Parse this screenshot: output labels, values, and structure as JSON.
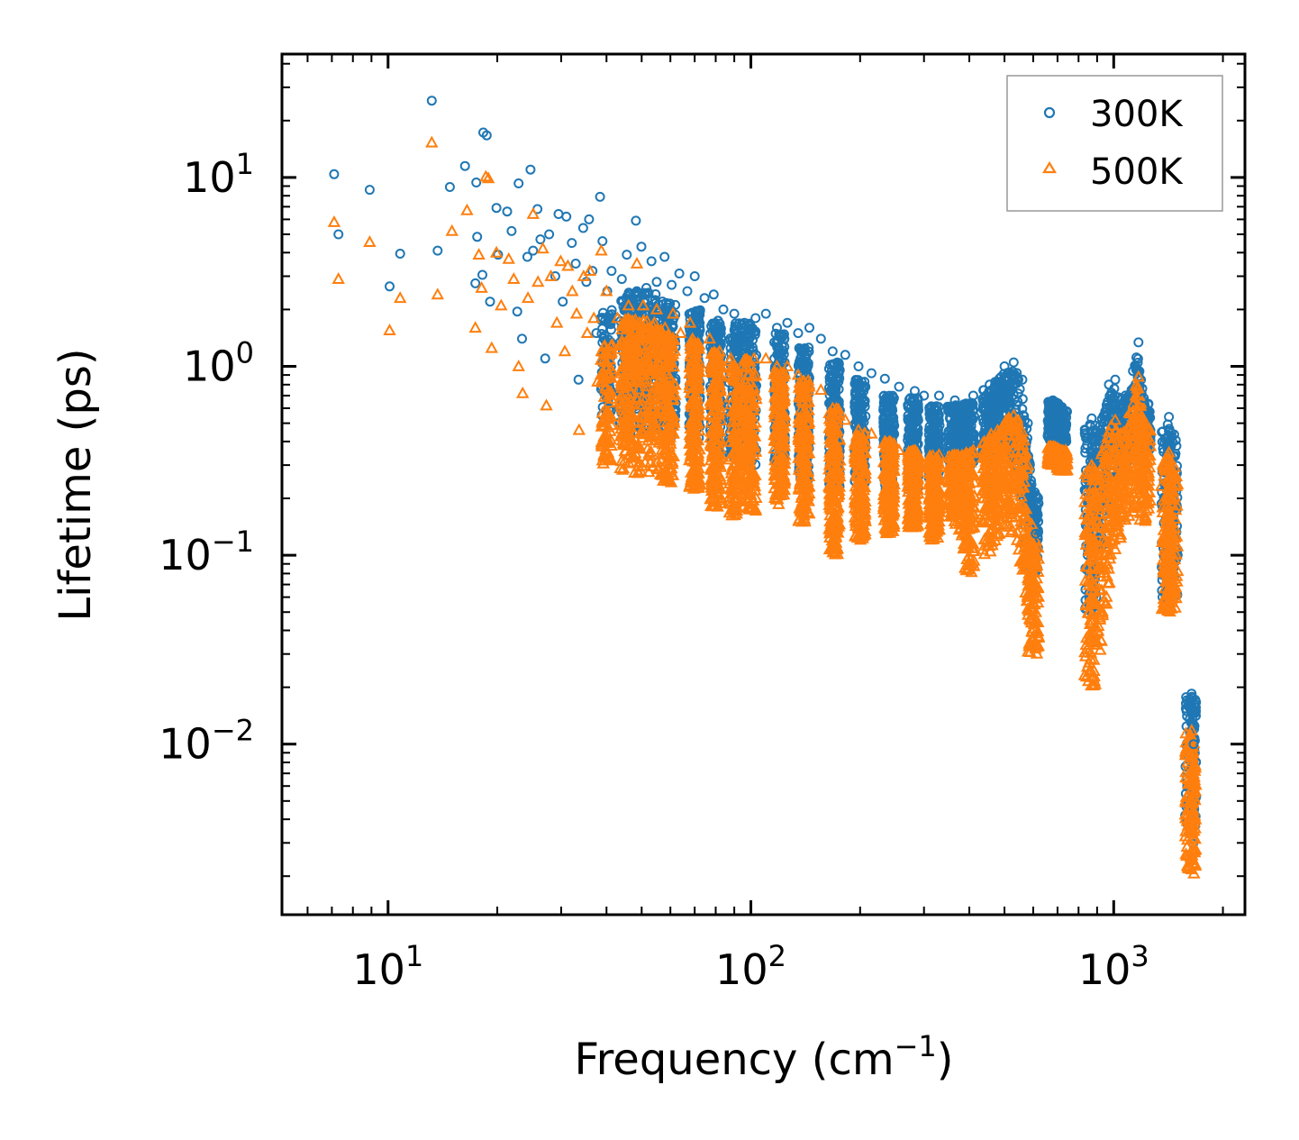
{
  "chart_data": {
    "type": "scatter",
    "xscale": "log",
    "yscale": "log",
    "xlim": [
      5.1,
      2300
    ],
    "ylim": [
      0.00125,
      45
    ],
    "xlabel": "Frequency (cm",
    "xlabel_sup": "−1",
    "xlabel_end": ")",
    "ylabel": "Lifetime (ps)",
    "x_ticks": [
      {
        "value": 10,
        "base": "10",
        "exp": "1"
      },
      {
        "value": 100,
        "base": "10",
        "exp": "2"
      },
      {
        "value": 1000,
        "base": "10",
        "exp": "3"
      }
    ],
    "y_ticks": [
      {
        "value": 10,
        "base": "10",
        "exp": "1"
      },
      {
        "value": 1,
        "base": "10",
        "exp": "0"
      },
      {
        "value": 0.1,
        "base": "10",
        "exp": "−1"
      },
      {
        "value": 0.01,
        "base": "10",
        "exp": "−2"
      }
    ],
    "legend_position": "top-right",
    "series": [
      {
        "name": "300K",
        "marker": "circle",
        "color": "#1f77b4",
        "points": [
          [
            7.1,
            10.4
          ],
          [
            7.3,
            5.0
          ],
          [
            8.9,
            8.6
          ],
          [
            10.1,
            2.65
          ],
          [
            10.8,
            3.95
          ],
          [
            13.2,
            25.5
          ],
          [
            13.7,
            4.1
          ],
          [
            14.8,
            8.9
          ],
          [
            16.3,
            11.5
          ],
          [
            17.4,
            2.75
          ],
          [
            17.5,
            9.4
          ],
          [
            17.6,
            4.85
          ],
          [
            18.2,
            3.05
          ],
          [
            18.3,
            17.3
          ],
          [
            18.7,
            16.7
          ],
          [
            19.1,
            2.2
          ],
          [
            19.9,
            6.9
          ],
          [
            20.1,
            3.9
          ],
          [
            21.3,
            6.6
          ],
          [
            21.9,
            5.2
          ],
          [
            22.7,
            1.95
          ],
          [
            22.9,
            9.3
          ],
          [
            23.4,
            1.4
          ],
          [
            24.2,
            3.8
          ],
          [
            24.7,
            11.0
          ],
          [
            25.1,
            4.1
          ],
          [
            25.8,
            6.8
          ],
          [
            26.3,
            4.7
          ],
          [
            27.1,
            1.1
          ],
          [
            27.8,
            5.0
          ],
          [
            28.9,
            3.0
          ],
          [
            29.5,
            6.4
          ],
          [
            30.3,
            2.2
          ],
          [
            31.0,
            6.2
          ],
          [
            32.1,
            4.5
          ],
          [
            32.9,
            3.5
          ],
          [
            33.5,
            0.85
          ],
          [
            34.5,
            5.4
          ],
          [
            35.2,
            2.8
          ],
          [
            35.8,
            6.0
          ],
          [
            36.6,
            3.2
          ],
          [
            37.5,
            1.5
          ],
          [
            38.4,
            7.9
          ],
          [
            39.0,
            4.6
          ],
          [
            40.2,
            2.5
          ],
          [
            41.3,
            3.2
          ],
          [
            42.6,
            1.8
          ],
          [
            44.1,
            2.9
          ],
          [
            45.5,
            3.9
          ],
          [
            47.0,
            2.3
          ],
          [
            48.2,
            5.9
          ],
          [
            49.9,
            4.3
          ],
          [
            51.5,
            2.6
          ],
          [
            53.2,
            3.6
          ],
          [
            55.0,
            2.8
          ],
          [
            57.8,
            3.8
          ],
          [
            60.5,
            2.7
          ],
          [
            63.5,
            3.1
          ],
          [
            66.8,
            2.5
          ],
          [
            70.0,
            3.0
          ],
          [
            74.5,
            2.3
          ],
          [
            79.0,
            2.4
          ],
          [
            84.0,
            2.0
          ],
          [
            90.0,
            1.9
          ],
          [
            96.0,
            1.7
          ],
          [
            103.0,
            1.8
          ],
          [
            110.0,
            1.9
          ],
          [
            118.0,
            1.6
          ],
          [
            126.0,
            1.7
          ],
          [
            135.0,
            1.5
          ],
          [
            145.0,
            1.6
          ],
          [
            156.0,
            1.4
          ],
          [
            168.0,
            1.2
          ],
          [
            182.0,
            1.15
          ],
          [
            198.0,
            1.0
          ],
          [
            215.0,
            0.92
          ],
          [
            234.0,
            0.86
          ],
          [
            256.0,
            0.78
          ],
          [
            283.0,
            0.74
          ],
          [
            300.0,
            0.7
          ],
          [
            330.0,
            0.7
          ],
          [
            365.0,
            0.66
          ],
          [
            410.0,
            0.7
          ],
          [
            455.0,
            0.8
          ],
          [
            500.0,
            1.0
          ],
          [
            530.0,
            1.05
          ],
          [
            560.0,
            0.85
          ],
          [
            580.0,
            0.5
          ],
          [
            610.0,
            0.13
          ],
          [
            680.0,
            0.66
          ],
          [
            700.0,
            0.6
          ],
          [
            715.0,
            0.55
          ],
          [
            870.0,
            0.53
          ],
          [
            900.0,
            0.45
          ],
          [
            970.0,
            0.8
          ],
          [
            1010.0,
            0.85
          ],
          [
            1060.0,
            0.6
          ],
          [
            1150.0,
            1.0
          ],
          [
            1170.0,
            1.34
          ],
          [
            1210.0,
            0.68
          ],
          [
            1420.0,
            0.54
          ],
          [
            1440.0,
            0.42
          ],
          [
            1640.0,
            0.0185
          ],
          [
            1650.0,
            0.0135
          ],
          [
            1660.0,
            0.01
          ]
        ]
      },
      {
        "name": "500K",
        "marker": "triangle",
        "color": "#ff7f0e",
        "points": [
          [
            7.1,
            5.8
          ],
          [
            7.3,
            2.9
          ],
          [
            8.9,
            4.55
          ],
          [
            10.1,
            1.55
          ],
          [
            10.8,
            2.3
          ],
          [
            13.2,
            15.3
          ],
          [
            13.7,
            2.4
          ],
          [
            15.0,
            5.2
          ],
          [
            16.5,
            6.7
          ],
          [
            17.4,
            1.6
          ],
          [
            17.8,
            3.9
          ],
          [
            18.1,
            2.6
          ],
          [
            18.6,
            10.1
          ],
          [
            18.9,
            9.9
          ],
          [
            19.3,
            1.25
          ],
          [
            19.9,
            4.0
          ],
          [
            20.5,
            2.1
          ],
          [
            21.5,
            3.7
          ],
          [
            22.2,
            2.9
          ],
          [
            22.9,
            1.0
          ],
          [
            23.5,
            0.72
          ],
          [
            24.3,
            2.3
          ],
          [
            25.1,
            6.4
          ],
          [
            25.9,
            2.8
          ],
          [
            26.7,
            4.2
          ],
          [
            27.3,
            0.62
          ],
          [
            28.1,
            3.0
          ],
          [
            29.2,
            1.7
          ],
          [
            29.9,
            3.6
          ],
          [
            30.7,
            1.2
          ],
          [
            31.3,
            3.4
          ],
          [
            32.2,
            2.5
          ],
          [
            33.1,
            1.9
          ],
          [
            33.6,
            0.46
          ],
          [
            34.6,
            3.0
          ],
          [
            35.4,
            1.5
          ],
          [
            36.0,
            3.2
          ],
          [
            36.9,
            1.8
          ],
          [
            37.8,
            0.83
          ],
          [
            38.7,
            4.1
          ],
          [
            40.0,
            2.5
          ],
          [
            41.5,
            1.3
          ],
          [
            42.9,
            1.8
          ],
          [
            44.4,
            1.0
          ],
          [
            46.0,
            2.1
          ],
          [
            48.5,
            3.5
          ],
          [
            50.5,
            2.1
          ],
          [
            52.5,
            1.4
          ],
          [
            55.0,
            2.0
          ],
          [
            58.0,
            1.6
          ],
          [
            61.0,
            1.9
          ],
          [
            64.0,
            1.5
          ],
          [
            68.0,
            1.7
          ],
          [
            72.0,
            1.3
          ],
          [
            77.0,
            1.4
          ],
          [
            82.0,
            1.2
          ],
          [
            88.0,
            1.1
          ],
          [
            95.0,
            1.0
          ],
          [
            102.0,
            1.1
          ],
          [
            110.0,
            1.1
          ],
          [
            118.0,
            1.0
          ],
          [
            126.0,
            1.0
          ],
          [
            135.0,
            0.9
          ],
          [
            145.0,
            0.78
          ],
          [
            156.0,
            0.75
          ],
          [
            168.0,
            0.6
          ],
          [
            182.0,
            0.52
          ],
          [
            198.0,
            0.46
          ],
          [
            215.0,
            0.44
          ],
          [
            234.0,
            0.4
          ],
          [
            256.0,
            0.36
          ],
          [
            283.0,
            0.34
          ],
          [
            300.0,
            0.3
          ],
          [
            330.0,
            0.34
          ],
          [
            365.0,
            0.3
          ],
          [
            410.0,
            0.36
          ],
          [
            455.0,
            0.4
          ],
          [
            500.0,
            0.48
          ],
          [
            530.0,
            0.55
          ],
          [
            560.0,
            0.45
          ],
          [
            580.0,
            0.3
          ],
          [
            610.0,
            0.05
          ],
          [
            680.0,
            0.33
          ],
          [
            700.0,
            0.36
          ],
          [
            715.0,
            0.3
          ],
          [
            870.0,
            0.3
          ],
          [
            900.0,
            0.25
          ],
          [
            970.0,
            0.45
          ],
          [
            1010.0,
            0.52
          ],
          [
            1060.0,
            0.4
          ],
          [
            1150.0,
            0.7
          ],
          [
            1170.0,
            0.88
          ],
          [
            1210.0,
            0.5
          ],
          [
            1420.0,
            0.35
          ],
          [
            1440.0,
            0.28
          ],
          [
            1640.0,
            0.0118
          ],
          [
            1650.0,
            0.0085
          ],
          [
            1660.0,
            0.006
          ]
        ]
      }
    ],
    "bands": [
      {
        "series": "300K",
        "ranges": [
          [
            40,
            0.55,
            2.0
          ],
          [
            45,
            0.5,
            2.5
          ],
          [
            50,
            0.4,
            2.6
          ],
          [
            55,
            0.45,
            2.4
          ],
          [
            60,
            0.42,
            2.2
          ],
          [
            70,
            0.4,
            2.0
          ],
          [
            80,
            0.35,
            1.8
          ],
          [
            90,
            0.3,
            1.7
          ],
          [
            100,
            0.3,
            1.7
          ],
          [
            120,
            0.3,
            1.5
          ],
          [
            140,
            0.25,
            1.3
          ],
          [
            170,
            0.22,
            1.05
          ],
          [
            200,
            0.24,
            0.85
          ],
          [
            240,
            0.22,
            0.7
          ],
          [
            280,
            0.22,
            0.68
          ],
          [
            320,
            0.25,
            0.62
          ],
          [
            360,
            0.28,
            0.62
          ],
          [
            400,
            0.3,
            0.65
          ],
          [
            450,
            0.32,
            0.75
          ],
          [
            500,
            0.35,
            0.95
          ],
          [
            540,
            0.3,
            0.95
          ],
          [
            570,
            0.12,
            0.6
          ],
          [
            600,
            0.08,
            0.22
          ],
          [
            680,
            0.4,
            0.65
          ],
          [
            720,
            0.4,
            0.62
          ],
          [
            860,
            0.05,
            0.5
          ],
          [
            900,
            0.06,
            0.45
          ],
          [
            950,
            0.15,
            0.62
          ],
          [
            1000,
            0.25,
            0.8
          ],
          [
            1050,
            0.25,
            0.65
          ],
          [
            1100,
            0.3,
            0.75
          ],
          [
            1160,
            0.35,
            1.2
          ],
          [
            1220,
            0.35,
            0.65
          ],
          [
            1400,
            0.06,
            0.5
          ],
          [
            1450,
            0.06,
            0.45
          ],
          [
            1630,
            0.0032,
            0.018
          ],
          [
            1670,
            0.0028,
            0.014
          ]
        ]
      },
      {
        "series": "500K",
        "ranges": [
          [
            40,
            0.3,
            1.3
          ],
          [
            45,
            0.28,
            1.8
          ],
          [
            50,
            0.25,
            1.8
          ],
          [
            55,
            0.25,
            1.7
          ],
          [
            60,
            0.24,
            1.5
          ],
          [
            70,
            0.22,
            1.4
          ],
          [
            80,
            0.18,
            1.2
          ],
          [
            90,
            0.16,
            1.1
          ],
          [
            100,
            0.17,
            1.1
          ],
          [
            120,
            0.18,
            0.95
          ],
          [
            140,
            0.15,
            0.85
          ],
          [
            170,
            0.1,
            0.6
          ],
          [
            200,
            0.12,
            0.45
          ],
          [
            240,
            0.13,
            0.4
          ],
          [
            280,
            0.14,
            0.36
          ],
          [
            320,
            0.12,
            0.34
          ],
          [
            360,
            0.16,
            0.34
          ],
          [
            400,
            0.08,
            0.35
          ],
          [
            450,
            0.1,
            0.42
          ],
          [
            500,
            0.14,
            0.52
          ],
          [
            540,
            0.12,
            0.56
          ],
          [
            570,
            0.06,
            0.4
          ],
          [
            600,
            0.03,
            0.12
          ],
          [
            680,
            0.3,
            0.38
          ],
          [
            720,
            0.28,
            0.36
          ],
          [
            860,
            0.02,
            0.3
          ],
          [
            900,
            0.02,
            0.28
          ],
          [
            950,
            0.05,
            0.42
          ],
          [
            1000,
            0.1,
            0.52
          ],
          [
            1050,
            0.12,
            0.45
          ],
          [
            1100,
            0.15,
            0.55
          ],
          [
            1160,
            0.18,
            0.85
          ],
          [
            1220,
            0.15,
            0.48
          ],
          [
            1400,
            0.05,
            0.35
          ],
          [
            1450,
            0.05,
            0.3
          ],
          [
            1630,
            0.0021,
            0.0115
          ],
          [
            1670,
            0.002,
            0.009
          ]
        ]
      }
    ]
  }
}
